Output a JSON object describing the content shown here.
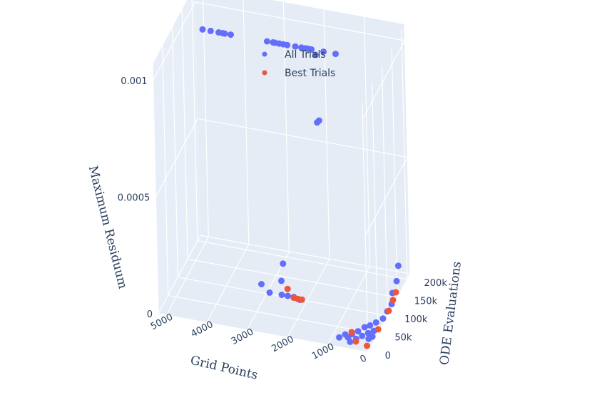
{
  "chart_data": {
    "type": "scatter",
    "axes": {
      "x": {
        "title": "Grid Points",
        "range": [
          0,
          5200
        ],
        "ticks": [
          0,
          1000,
          2000,
          3000,
          4000,
          5000
        ],
        "tick_labels": [
          "0",
          "1000",
          "2000",
          "3000",
          "4000",
          "5000"
        ]
      },
      "y": {
        "title": "ODE Evaluations",
        "range": [
          0,
          215000
        ],
        "ticks": [
          0,
          50000,
          100000,
          150000,
          200000
        ],
        "tick_labels": [
          "0",
          "50k",
          "100k",
          "150k",
          "200k"
        ]
      },
      "z": {
        "title": "Maximum Residuum",
        "range": [
          0,
          0.00107
        ],
        "ticks": [
          0,
          0.0005,
          0.001
        ],
        "tick_labels": [
          "0",
          "0.0005",
          "0.001"
        ]
      }
    },
    "grid": true,
    "legend_position": "top-center",
    "series": [
      {
        "name": "All Trials",
        "color": "#636efa",
        "points": [
          [
            4700,
            150000,
            0.001
          ],
          [
            4500,
            150000,
            0.001
          ],
          [
            4300,
            150000,
            0.001
          ],
          [
            4200,
            150000,
            0.001
          ],
          [
            4150,
            150000,
            0.001
          ],
          [
            4000,
            150000,
            0.001
          ],
          [
            3100,
            150000,
            0.001
          ],
          [
            2950,
            150000,
            0.001
          ],
          [
            2900,
            150000,
            0.001
          ],
          [
            2800,
            150000,
            0.001
          ],
          [
            2700,
            150000,
            0.001
          ],
          [
            2600,
            150000,
            0.001
          ],
          [
            2400,
            150000,
            0.001
          ],
          [
            2250,
            150000,
            0.001
          ],
          [
            2150,
            150000,
            0.001
          ],
          [
            2100,
            150000,
            0.001
          ],
          [
            2050,
            150000,
            0.001
          ],
          [
            2000,
            150000,
            0.001
          ],
          [
            1900,
            150000,
            0.00098
          ],
          [
            1700,
            150000,
            0.001
          ],
          [
            1400,
            150000,
            0.001
          ],
          [
            1900,
            150000,
            0.00069
          ],
          [
            1850,
            150000,
            0.0007
          ],
          [
            2550,
            95000,
            0.00015
          ],
          [
            2600,
            95000,
            7.5e-05
          ],
          [
            3100,
            95000,
            4.5e-05
          ],
          [
            2900,
            95000,
            1.5e-05
          ],
          [
            2600,
            95000,
            1.5e-05
          ],
          [
            2450,
            95000,
            1.5e-05
          ],
          [
            2300,
            95000,
            1.5e-05
          ],
          [
            2150,
            95000,
            8e-06
          ],
          [
            800,
            18000,
            1e-05
          ],
          [
            700,
            28000,
            1e-05
          ],
          [
            600,
            22000,
            1e-05
          ],
          [
            550,
            32000,
            1e-05
          ],
          [
            500,
            12000,
            1e-05
          ],
          [
            450,
            42000,
            1e-05
          ],
          [
            400,
            22000,
            1e-05
          ],
          [
            350,
            55000,
            1e-05
          ],
          [
            300,
            32000,
            1e-05
          ],
          [
            250,
            62000,
            1e-05
          ],
          [
            200,
            42000,
            1e-05
          ],
          [
            150,
            72000,
            1e-05
          ],
          [
            120,
            28000,
            1e-05
          ],
          [
            100,
            50000,
            1e-05
          ],
          [
            60,
            35000,
            1e-05
          ],
          [
            40,
            85000,
            1e-05
          ],
          [
            30,
            105000,
            1e-05
          ],
          [
            20,
            125000,
            1e-05
          ],
          [
            20,
            130000,
            5e-05
          ],
          [
            10,
            150000,
            7e-05
          ],
          [
            10,
            160000,
            0.00012
          ]
        ]
      },
      {
        "name": "Best Trials",
        "color": "#ef553b",
        "points": [
          [
            2450,
            95000,
            4.5e-05
          ],
          [
            2300,
            95000,
            1.2e-05
          ],
          [
            2200,
            95000,
            1e-05
          ],
          [
            2100,
            95000,
            1e-05
          ],
          [
            600,
            40000,
            5e-06
          ],
          [
            400,
            20000,
            2e-06
          ],
          [
            100,
            15000,
            1e-06
          ],
          [
            40,
            60000,
            3e-06
          ],
          [
            20,
            110000,
            5e-06
          ],
          [
            10,
            130000,
            2e-05
          ],
          [
            10,
            145000,
            3e-05
          ]
        ]
      }
    ]
  },
  "legend": [
    {
      "label": "All Trials",
      "color": "#636efa"
    },
    {
      "label": "Best Trials",
      "color": "#ef553b"
    }
  ]
}
